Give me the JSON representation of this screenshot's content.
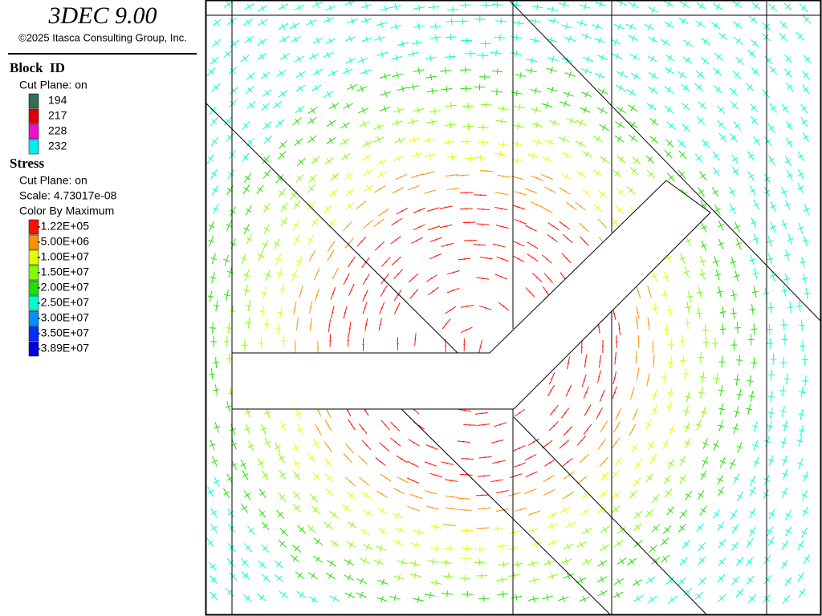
{
  "header": {
    "title": "3DEC 9.00",
    "copyright": "©2025 Itasca Consulting Group, Inc."
  },
  "legend": {
    "block_id": {
      "title": "Block  ID",
      "cut_plane": "Cut Plane: on",
      "entries": [
        {
          "label": "194",
          "color": "#2e7050"
        },
        {
          "label": "217",
          "color": "#e00000"
        },
        {
          "label": "228",
          "color": "#ee10d0"
        },
        {
          "label": "232",
          "color": "#00f0f0"
        }
      ]
    },
    "stress": {
      "title": "Stress",
      "cut_plane": "Cut Plane: on",
      "scale": "Scale: 4.73017e-08",
      "color_by": "Color By Maximum",
      "entries": [
        {
          "label": "-1.22E+05",
          "color": "#ff1000"
        },
        {
          "label": "-5.00E+06",
          "color": "#ff9000"
        },
        {
          "label": "-1.00E+07",
          "color": "#e0ff00"
        },
        {
          "label": "-1.50E+07",
          "color": "#80ff00"
        },
        {
          "label": "-2.00E+07",
          "color": "#20e000"
        },
        {
          "label": "-2.50E+07",
          "color": "#00ffd0"
        },
        {
          "label": "-3.00E+07",
          "color": "#0090ff"
        },
        {
          "label": "-3.50E+07",
          "color": "#0030ff"
        },
        {
          "label": "-3.89E+07",
          "color": "#0000e0"
        }
      ]
    }
  }
}
